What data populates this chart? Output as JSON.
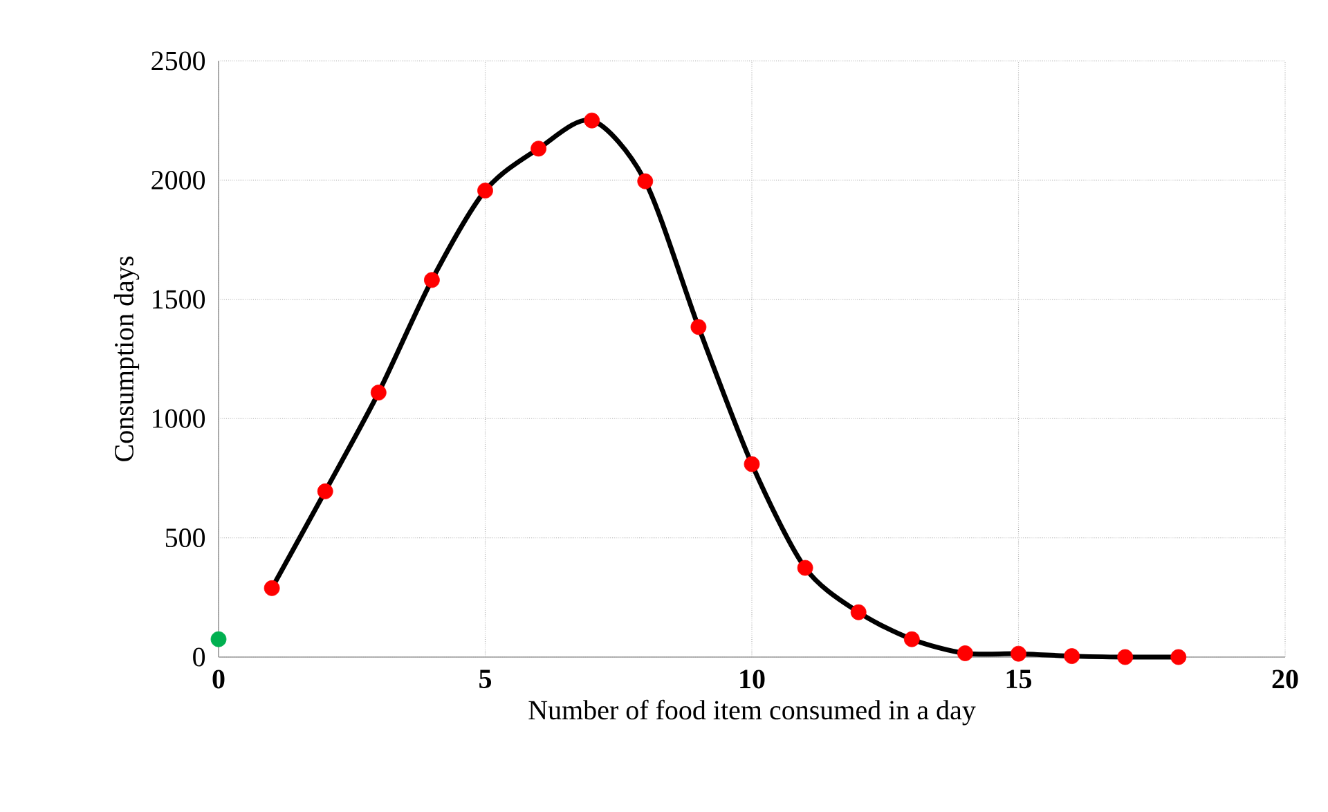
{
  "chart_data": {
    "type": "line",
    "xlabel": "Number of food item  consumed in a day",
    "ylabel": "Consumption days",
    "xlim": [
      0,
      20
    ],
    "xticks": [
      0,
      5,
      10,
      15,
      20
    ],
    "ylim": [
      0,
      2500
    ],
    "yticks": [
      0,
      500,
      1000,
      1500,
      2000,
      2500
    ],
    "grid": true,
    "series": [
      {
        "color": "#000000",
        "marker": "none",
        "x": [
          1,
          2,
          3,
          4,
          5,
          6,
          7,
          8,
          9,
          10,
          11,
          12,
          13,
          14,
          15,
          16,
          17,
          18
        ],
        "values": [
          289,
          695,
          1109,
          1581,
          1956,
          2132,
          2250,
          1995,
          1384,
          809,
          374,
          188,
          75,
          16,
          14,
          4,
          0,
          0
        ]
      },
      {
        "type": "scatter",
        "color": "#ff0000",
        "marker": "circle",
        "x": [
          1,
          2,
          3,
          4,
          5,
          6,
          7,
          8,
          9,
          10,
          11,
          12,
          13,
          14,
          15,
          16,
          17,
          18
        ],
        "values": [
          289,
          695,
          1109,
          1581,
          1956,
          2132,
          2250,
          1995,
          1384,
          809,
          374,
          188,
          75,
          16,
          14,
          4,
          0,
          0
        ]
      },
      {
        "type": "scatter",
        "color": "#00b050",
        "marker": "circle",
        "x": [
          0
        ],
        "values": [
          75
        ]
      }
    ]
  }
}
